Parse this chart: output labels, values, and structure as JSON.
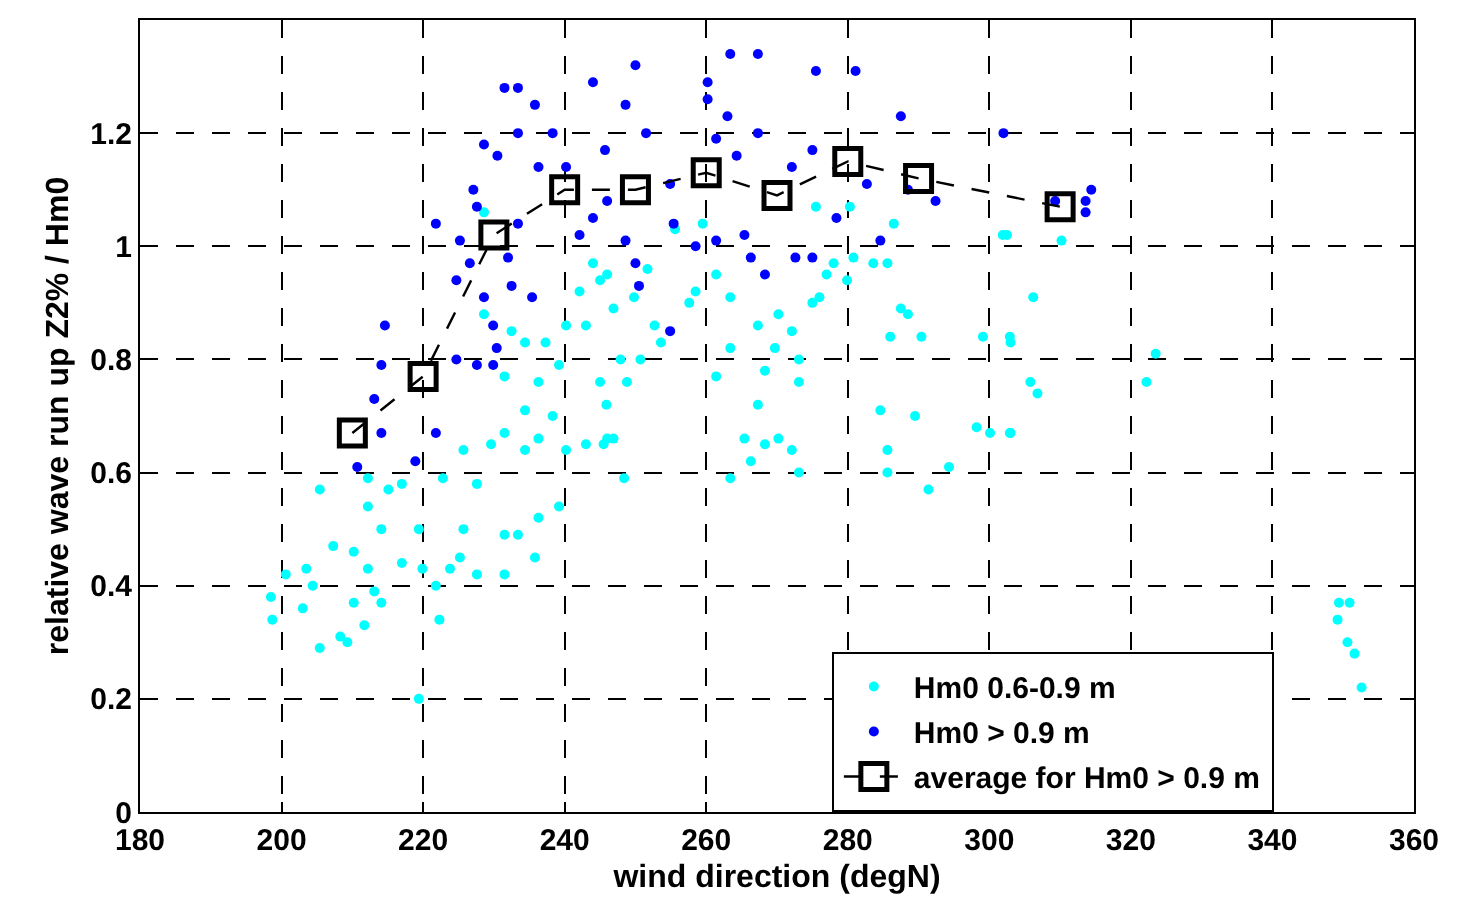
{
  "chart_data": {
    "type": "scatter",
    "xlabel": "wind direction (degN)",
    "ylabel": "relative wave run up Z2% / Hm0",
    "xlim": [
      180,
      360
    ],
    "xticks": [
      180,
      200,
      220,
      240,
      260,
      280,
      300,
      320,
      340,
      360
    ],
    "ylim": [
      0,
      1.4
    ],
    "yticks": [
      0,
      0.2,
      0.4,
      0.6,
      0.8,
      1,
      1.2
    ],
    "grid": true,
    "legend": "bottom right",
    "series": [
      {
        "name": "Hm0 0.6-0.9 m",
        "marker": "circle",
        "color": "#00ffff",
        "x": [
          198.5,
          198.7,
          200.6,
          203.5,
          204.4,
          203,
          205.4,
          208.3,
          209.3,
          210.2,
          211.7,
          213.1,
          214.1,
          207.3,
          210.2,
          205.4,
          212.2,
          212.2,
          214.1,
          215.1,
          217,
          212.2,
          217,
          219.9,
          219.4,
          219.4,
          222.3,
          221.8,
          223.8,
          225.2,
          227.6,
          231.5,
          225.7,
          231.5,
          233.4,
          235.8,
          236.3,
          239.2,
          222.8,
          225.7,
          227.6,
          229.6,
          231.5,
          234.4,
          236.3,
          238.3,
          240.2,
          243,
          246,
          234.4,
          236.3,
          239.2,
          231.5,
          228.6,
          232.5,
          234.4,
          237.3,
          240.2,
          242.1,
          244,
          246,
          243,
          245,
          228.6,
          245,
          246.9,
          249.8,
          251.7,
          252.7,
          253.6,
          250.7,
          247.9,
          248.8,
          245.9,
          246.9,
          245.5,
          248.4,
          255.6,
          258.5,
          261.4,
          257.6,
          263.4,
          259.5,
          263.4,
          266.3,
          265.4,
          267.3,
          268.3,
          269.7,
          270.2,
          272.1,
          273.1,
          273.1,
          275,
          277,
          278,
          279.9,
          276,
          275.5,
          280.3,
          280.8,
          283.6,
          285.6,
          286.5,
          287.5,
          288.5,
          290.4,
          286,
          284.6,
          285.6,
          285.6,
          289.5,
          291.4,
          294.3,
          301.9,
          299.1,
          303,
          298.2,
          300.1,
          303,
          270.2,
          268.3,
          272.1,
          273.1,
          263.4,
          267.3,
          261.4,
          302.5,
          310.2,
          306.2,
          302.9,
          305.8,
          306.8,
          302.9,
          323.5,
          322.2,
          349.4,
          350.9,
          349.2,
          350.6,
          351.6,
          352.6
        ],
        "values": [
          0.38,
          0.34,
          0.42,
          0.43,
          0.4,
          0.36,
          0.29,
          0.31,
          0.3,
          0.37,
          0.33,
          0.39,
          0.37,
          0.47,
          0.46,
          0.57,
          0.59,
          0.54,
          0.5,
          0.57,
          0.58,
          0.43,
          0.44,
          0.43,
          0.5,
          0.2,
          0.34,
          0.4,
          0.43,
          0.45,
          0.42,
          0.42,
          0.5,
          0.49,
          0.49,
          0.45,
          0.52,
          0.54,
          0.59,
          0.64,
          0.58,
          0.65,
          0.67,
          0.64,
          0.66,
          0.7,
          0.64,
          0.65,
          0.66,
          0.71,
          0.76,
          0.79,
          0.77,
          0.88,
          0.85,
          0.83,
          0.83,
          0.86,
          0.92,
          0.97,
          0.95,
          0.86,
          0.76,
          1.06,
          0.94,
          0.89,
          0.91,
          0.96,
          0.86,
          0.83,
          0.8,
          0.8,
          0.76,
          0.72,
          0.66,
          0.65,
          0.59,
          1.03,
          0.92,
          0.95,
          0.9,
          0.91,
          1.04,
          0.59,
          0.62,
          0.66,
          0.72,
          0.78,
          0.82,
          0.88,
          0.85,
          0.8,
          0.76,
          0.9,
          0.95,
          0.97,
          0.94,
          0.91,
          1.07,
          1.07,
          0.98,
          0.97,
          0.97,
          1.04,
          0.89,
          0.88,
          0.84,
          0.84,
          0.71,
          0.64,
          0.6,
          0.7,
          0.57,
          0.61,
          1.02,
          0.84,
          0.83,
          0.68,
          0.67,
          0.67,
          0.66,
          0.65,
          0.64,
          0.6,
          0.82,
          0.86,
          0.77,
          1.02,
          1.01,
          0.91,
          0.84,
          0.76,
          0.74,
          0.67,
          0.81,
          0.76,
          0.37,
          0.37,
          0.34,
          0.3,
          0.28,
          0.22
        ]
      },
      {
        "name": "Hm0 > 0.9 m",
        "marker": "circle",
        "color": "#0000ff",
        "x": [
          231.5,
          233.4,
          235.8,
          233.4,
          228.6,
          230.5,
          227.1,
          227.6,
          225.2,
          224.7,
          221.8,
          226.6,
          228.6,
          229.9,
          230.4,
          229.9,
          227.6,
          224.7,
          232.5,
          235.4,
          232,
          233.4,
          236.3,
          238.3,
          240.2,
          244,
          214.6,
          214.1,
          213.1,
          214.1,
          210.7,
          218.9,
          221.8,
          244,
          242.1,
          246,
          250,
          248.6,
          251.5,
          245.7,
          248.6,
          250,
          250.5,
          254.9,
          255.4,
          254.9,
          260.2,
          260.2,
          263.4,
          267.3,
          263,
          261.4,
          264.3,
          267.3,
          258.5,
          261.4,
          265.4,
          268.3,
          266.3,
          275.5,
          281.1,
          275,
          272.1,
          272.6,
          275,
          278.4,
          282.7,
          284.6,
          287.5,
          292.4,
          288.5,
          309.3,
          314.4,
          313.6,
          313.6,
          302
        ],
        "values": [
          1.28,
          1.28,
          1.25,
          1.2,
          1.18,
          1.16,
          1.1,
          1.07,
          1.01,
          0.94,
          1.04,
          0.97,
          0.91,
          0.86,
          0.82,
          0.79,
          0.79,
          0.8,
          0.93,
          0.91,
          0.98,
          1.04,
          1.14,
          1.2,
          1.14,
          1.29,
          0.86,
          0.79,
          0.73,
          0.67,
          0.61,
          0.62,
          0.67,
          1.05,
          1.02,
          1.08,
          1.32,
          1.25,
          1.2,
          1.17,
          1.01,
          0.97,
          0.93,
          0.85,
          1.04,
          1.11,
          1.29,
          1.26,
          1.34,
          1.34,
          1.23,
          1.19,
          1.16,
          1.2,
          1,
          1.01,
          1.02,
          0.95,
          0.98,
          1.31,
          1.31,
          1.17,
          1.14,
          0.98,
          0.98,
          1.05,
          1.11,
          1.01,
          1.23,
          1.08,
          1.1,
          1.08,
          1.1,
          1.08,
          1.06,
          1.2
        ]
      },
      {
        "name": "average for Hm0 > 0.9 m",
        "type": "line",
        "marker": "square",
        "line_style": "dashed",
        "color": "#000000",
        "x": [
          210,
          220,
          230,
          240,
          250,
          260,
          270,
          280,
          290,
          310
        ],
        "values": [
          0.67,
          0.77,
          1.02,
          1.1,
          1.1,
          1.13,
          1.09,
          1.15,
          1.12,
          1.07
        ]
      }
    ]
  }
}
